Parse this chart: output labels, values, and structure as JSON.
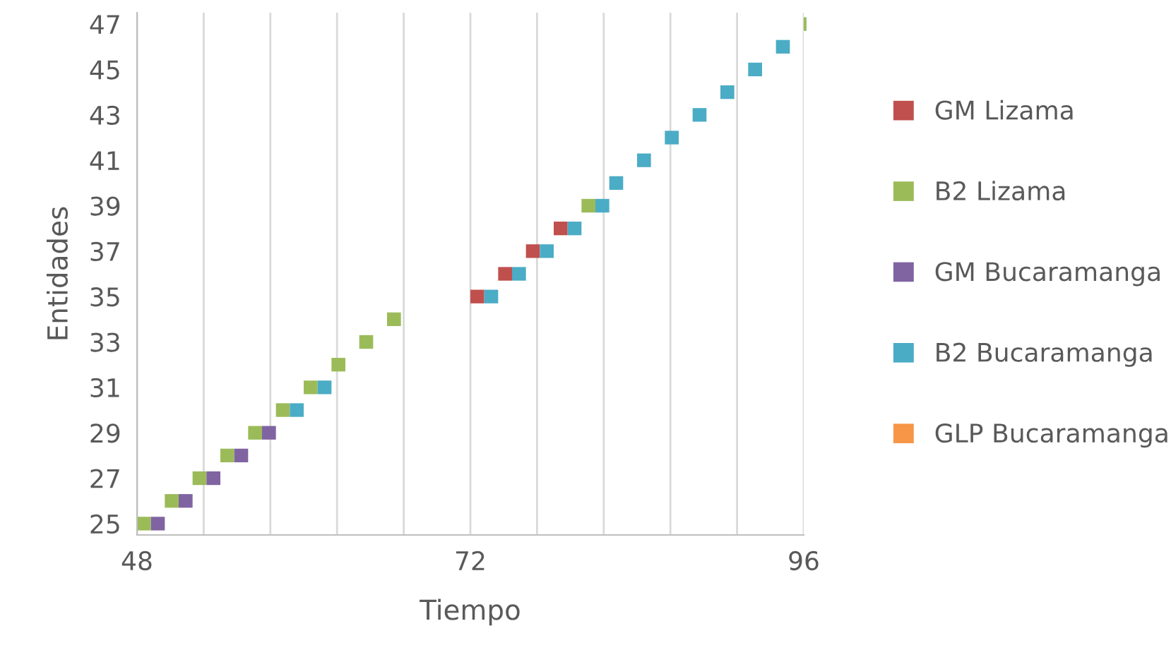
{
  "chart_data": {
    "type": "bar",
    "orientation": "horizontal",
    "xlabel": "Tiempo",
    "ylabel": "Entidades",
    "categories": [
      "47",
      null,
      "45",
      null,
      "43",
      null,
      "41",
      null,
      "39",
      null,
      "37",
      null,
      "35",
      null,
      "33",
      null,
      "31",
      null,
      "29",
      null,
      "27",
      null,
      "25"
    ],
    "series": [
      {
        "name": "GM Lizama",
        "color": "#c0504d",
        "values": [
          null,
          null,
          null,
          null,
          null,
          null,
          null,
          null,
          null,
          1,
          1,
          1,
          1,
          null,
          null,
          null,
          null,
          null,
          null,
          null,
          null,
          null,
          null
        ],
        "base": [
          null,
          null,
          null,
          null,
          null,
          null,
          null,
          null,
          null,
          78,
          76,
          74,
          72,
          null,
          null,
          null,
          null,
          null,
          null,
          null,
          null,
          null,
          null
        ]
      },
      {
        "name": "B2 Lizama",
        "color": "#9bbb59",
        "values": [
          0.2,
          null,
          null,
          null,
          null,
          null,
          null,
          null,
          1,
          null,
          null,
          null,
          null,
          1,
          1,
          1,
          1,
          1,
          1,
          1,
          1,
          1,
          1
        ],
        "base": [
          96,
          null,
          null,
          null,
          null,
          null,
          null,
          null,
          80,
          null,
          null,
          null,
          null,
          66,
          64,
          62,
          60,
          58,
          56,
          54,
          52,
          50,
          48
        ]
      },
      {
        "name": "GM Bucaramanga",
        "color": "#8064a2",
        "values": [
          null,
          null,
          null,
          null,
          null,
          null,
          null,
          null,
          null,
          null,
          null,
          null,
          null,
          null,
          null,
          null,
          null,
          null,
          1,
          1,
          1,
          1,
          1
        ],
        "base": [
          null,
          null,
          null,
          null,
          null,
          null,
          null,
          null,
          null,
          null,
          null,
          null,
          null,
          null,
          null,
          null,
          null,
          null,
          57,
          55,
          53,
          51,
          49
        ]
      },
      {
        "name": "B2 Bucaramanga",
        "color": "#4bacc6",
        "values": [
          null,
          1,
          1,
          1,
          1,
          1,
          1,
          1,
          1,
          1,
          1,
          1,
          1,
          null,
          null,
          null,
          1,
          1,
          null,
          null,
          null,
          null,
          null
        ],
        "base": [
          null,
          94,
          92,
          90,
          88,
          86,
          84,
          82,
          81,
          79,
          77,
          75,
          73,
          null,
          null,
          null,
          61,
          59,
          null,
          null,
          null,
          null,
          null
        ]
      },
      {
        "name": "GLP Bucaramanga",
        "color": "#f79646",
        "values": [
          null,
          null,
          null,
          null,
          null,
          null,
          null,
          null,
          null,
          null,
          null,
          null,
          null,
          null,
          null,
          null,
          null,
          null,
          null,
          null,
          null,
          null,
          null
        ]
      }
    ],
    "xlim": [
      48,
      96
    ],
    "xticks": [
      48,
      {
        "value": 52.8,
        "label": null
      },
      {
        "value": 57.6,
        "label": null
      },
      {
        "value": 62.4,
        "label": null
      },
      {
        "value": 67.2,
        "label": null
      },
      72,
      {
        "value": 76.8,
        "label": null
      },
      {
        "value": 81.6,
        "label": null
      },
      {
        "value": 86.4,
        "label": null
      },
      {
        "value": 91.2,
        "label": null
      },
      96
    ],
    "grid": "x",
    "legend": "right"
  }
}
